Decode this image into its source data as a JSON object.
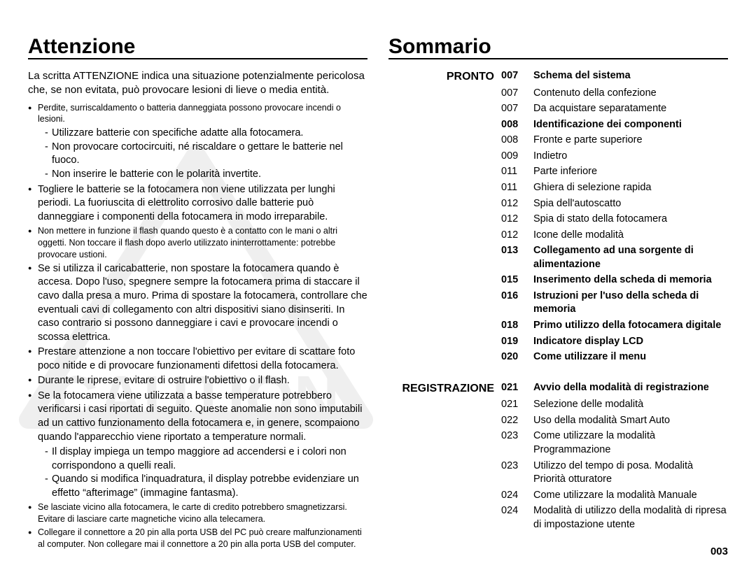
{
  "left": {
    "title": "Attenzione",
    "intro": "La scritta ATTENZIONE indica una situazione potenzialmente pericolosa che, se non evitata, può provocare lesioni di lieve o media entità.",
    "watermark_text": "CAUTION",
    "bullets": [
      {
        "text": "Perdite, surriscaldamento o batteria danneggiata possono provocare incendi o lesioni.",
        "small": true,
        "sub": [
          "Utilizzare batterie con specifiche adatte alla fotocamera.",
          "Non provocare cortocircuiti, né riscaldare o gettare le batterie nel fuoco.",
          "Non inserire le batterie con le polarità invertite."
        ]
      },
      {
        "text": "Togliere le batterie se la fotocamera non viene utilizzata per lunghi periodi. La fuoriuscita di elettrolito corrosivo dalle batterie può danneggiare i componenti della fotocamera in modo irreparabile."
      },
      {
        "text": "Non mettere in funzione il flash quando questo è a contatto con le mani o altri oggetti. Non toccare il flash dopo averlo utilizzato ininterrottamente: potrebbe provocare ustioni.",
        "small": true
      },
      {
        "text": "Se si utilizza il caricabatterie, non spostare la fotocamera quando è accesa. Dopo l'uso, spegnere sempre la fotocamera prima di staccare il cavo dalla presa a muro. Prima di spostare la fotocamera, controllare che eventuali cavi di collegamento con altri dispositivi siano disinseriti. In caso contrario si possono danneggiare i cavi e provocare incendi o scossa elettrica."
      },
      {
        "text": "Prestare attenzione a non toccare l'obiettivo per evitare di scattare foto poco nitide e di provocare funzionamenti difettosi della fotocamera."
      },
      {
        "text": "Durante le riprese, evitare di ostruire l'obiettivo o il flash."
      },
      {
        "text": "Se la fotocamera viene utilizzata a basse temperature potrebbero verificarsi i casi riportati di seguito. Queste anomalie non sono imputabili ad un cattivo funzionamento della fotocamera e, in genere, scompaiono quando l'apparecchio viene riportato a temperature normali.",
        "sub": [
          "Il display impiega un tempo maggiore ad accendersi e i colori non corrispondono a quelli reali.",
          "Quando si modifica l'inquadratura, il display potrebbe evidenziare un effetto “afterimage” (immagine fantasma)."
        ]
      },
      {
        "text": "Se lasciate vicino alla fotocamera, le carte di credito potrebbero smagnetizzarsi. Evitare di lasciare carte magnetiche vicino alla telecamera.",
        "small": true
      },
      {
        "text": "Collegare il connettore a 20 pin alla porta USB del PC può creare malfunzionamenti al computer. Non collegare mai il connettore a 20 pin alla porta USB del computer.",
        "small": true
      }
    ]
  },
  "right": {
    "title": "Sommario",
    "sections": [
      {
        "label": "PRONTO",
        "entries": [
          {
            "num": "007",
            "text": "Schema del sistema",
            "bold": true
          },
          {
            "num": "007",
            "text": "Contenuto della confezione"
          },
          {
            "num": "007",
            "text": "Da acquistare separatamente"
          },
          {
            "num": "008",
            "text": "Identificazione dei componenti",
            "bold": true
          },
          {
            "num": "008",
            "text": "Fronte e parte superiore"
          },
          {
            "num": "009",
            "text": "Indietro"
          },
          {
            "num": "011",
            "text": "Parte inferiore"
          },
          {
            "num": "011",
            "text": "Ghiera di selezione rapida"
          },
          {
            "num": "012",
            "text": "Spia dell'autoscatto"
          },
          {
            "num": "012",
            "text": "Spia di stato della fotocamera"
          },
          {
            "num": "012",
            "text": "Icone delle modalità"
          },
          {
            "num": "013",
            "text": "Collegamento ad una sorgente di alimentazione",
            "bold": true
          },
          {
            "num": "015",
            "text": "Inserimento della scheda di memoria",
            "bold": true
          },
          {
            "num": "016",
            "text": "Istruzioni per l'uso della scheda di memoria",
            "bold": true
          },
          {
            "num": "018",
            "text": "Primo utilizzo della fotocamera digitale",
            "bold": true
          },
          {
            "num": "019",
            "text": "Indicatore display LCD",
            "bold": true
          },
          {
            "num": "020",
            "text": "Come utilizzare il menu",
            "bold": true
          }
        ]
      },
      {
        "label": "REGISTRAZIONE",
        "entries": [
          {
            "num": "021",
            "text": "Avvio della modalità di registrazione",
            "bold": true
          },
          {
            "num": "021",
            "text": "Selezione delle modalità"
          },
          {
            "num": "022",
            "text": "Uso della modalità Smart Auto"
          },
          {
            "num": "023",
            "text": "Come utilizzare la modalità Programmazione"
          },
          {
            "num": "023",
            "text": "Utilizzo del tempo di posa. Modalità Priorità otturatore"
          },
          {
            "num": "024",
            "text": "Come utilizzare la modalità Manuale"
          },
          {
            "num": "024",
            "text": "Modalità di utilizzo della modalità di ripresa di impostazione utente"
          }
        ]
      }
    ]
  },
  "page_number": "003"
}
